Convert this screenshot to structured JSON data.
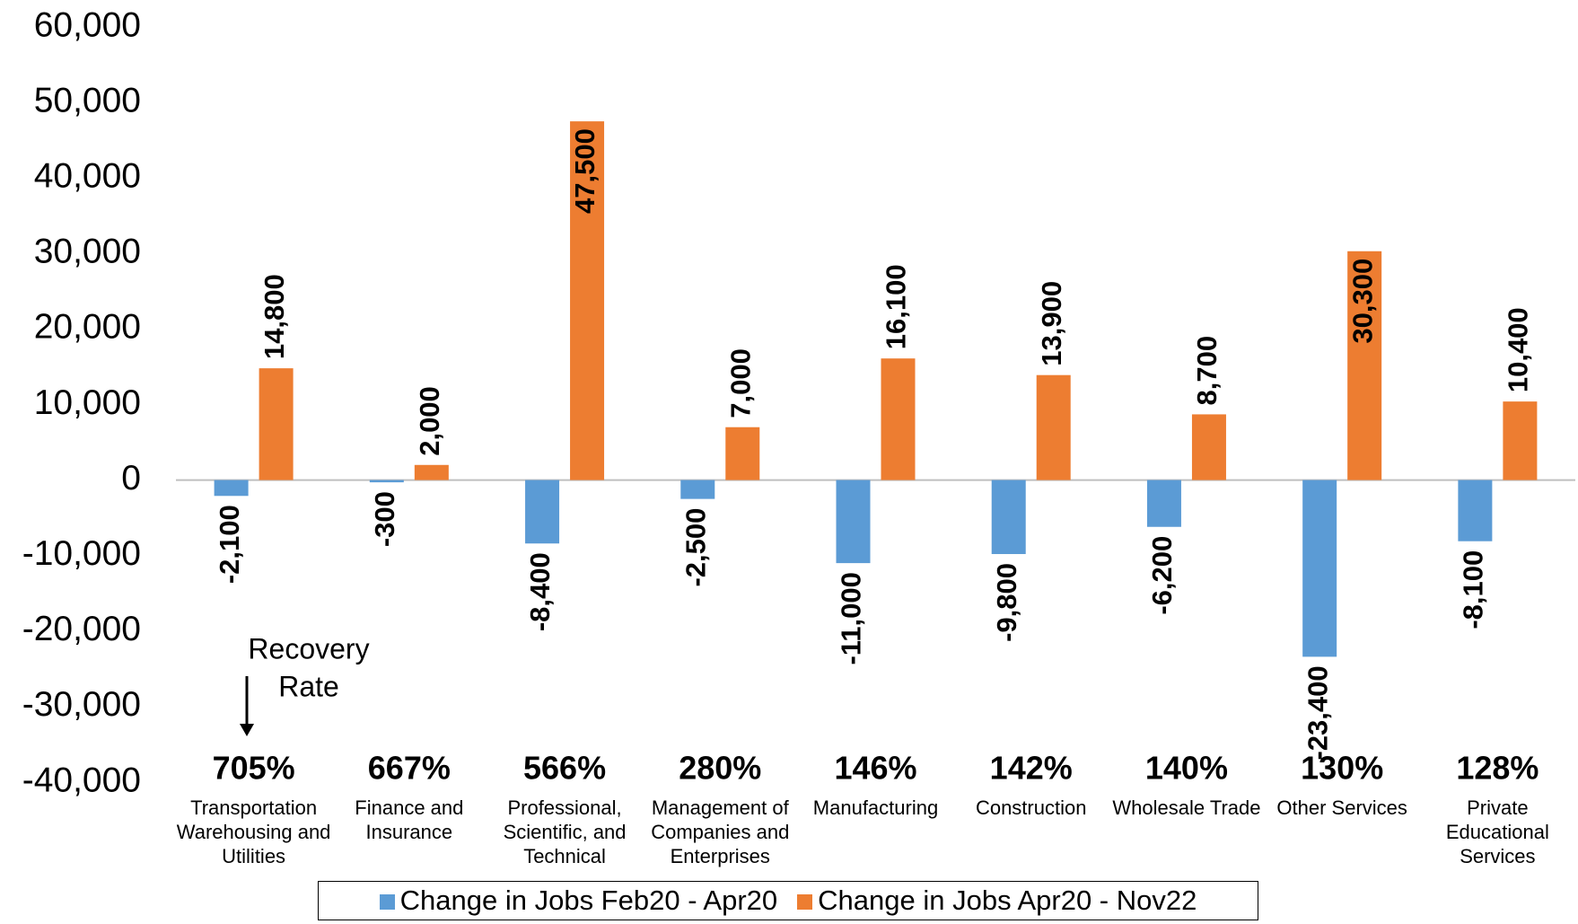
{
  "chart_data": {
    "type": "bar",
    "categories": [
      "Transportation Warehousing and Utilities",
      "Finance and Insurance",
      "Professional, Scientific, and Technical",
      "Management of Companies and Enterprises",
      "Manufacturing",
      "Construction",
      "Wholesale Trade",
      "Other Services",
      "Private Educational Services"
    ],
    "series": [
      {
        "name": "Change in Jobs Feb20 - Apr20",
        "color": "#5b9bd5",
        "values": [
          -2100,
          -300,
          -8400,
          -2500,
          -11000,
          -9800,
          -6200,
          -23400,
          -8100
        ],
        "value_labels": [
          "-2,100",
          "-300",
          "-8,400",
          "-2,500",
          "-11,000",
          "-9,800",
          "-6,200",
          "-23,400",
          "-8,100"
        ]
      },
      {
        "name": "Change in Jobs Apr20 - Nov22",
        "color": "#ed7d31",
        "values": [
          14800,
          2000,
          47500,
          7000,
          16100,
          13900,
          8700,
          30300,
          10400
        ],
        "value_labels": [
          "14,800",
          "2,000",
          "47,500",
          "7,000",
          "16,100",
          "13,900",
          "8,700",
          "30,300",
          "10,400"
        ]
      }
    ],
    "recovery_rate": {
      "annotation": [
        "Recovery",
        "Rate"
      ],
      "values": [
        705,
        667,
        566,
        280,
        146,
        142,
        140,
        130,
        128
      ],
      "value_labels": [
        "705%",
        "667%",
        "566%",
        "280%",
        "146%",
        "142%",
        "140%",
        "130%",
        "128%"
      ]
    },
    "ylim": [
      -40000,
      60000
    ],
    "yticks": [
      {
        "value": -40000,
        "label": "-40,000"
      },
      {
        "value": -30000,
        "label": "-30,000"
      },
      {
        "value": -20000,
        "label": "-20,000"
      },
      {
        "value": -10000,
        "label": "-10,000"
      },
      0,
      {
        "value": 10000,
        "label": "10,000"
      },
      {
        "value": 20000,
        "label": "20,000"
      },
      {
        "value": 30000,
        "label": "30,000"
      },
      {
        "value": 40000,
        "label": "40,000"
      },
      {
        "value": 50000,
        "label": "50,000"
      },
      {
        "value": 60000,
        "label": "60,000"
      }
    ],
    "grid": false,
    "legend": "bottom"
  }
}
